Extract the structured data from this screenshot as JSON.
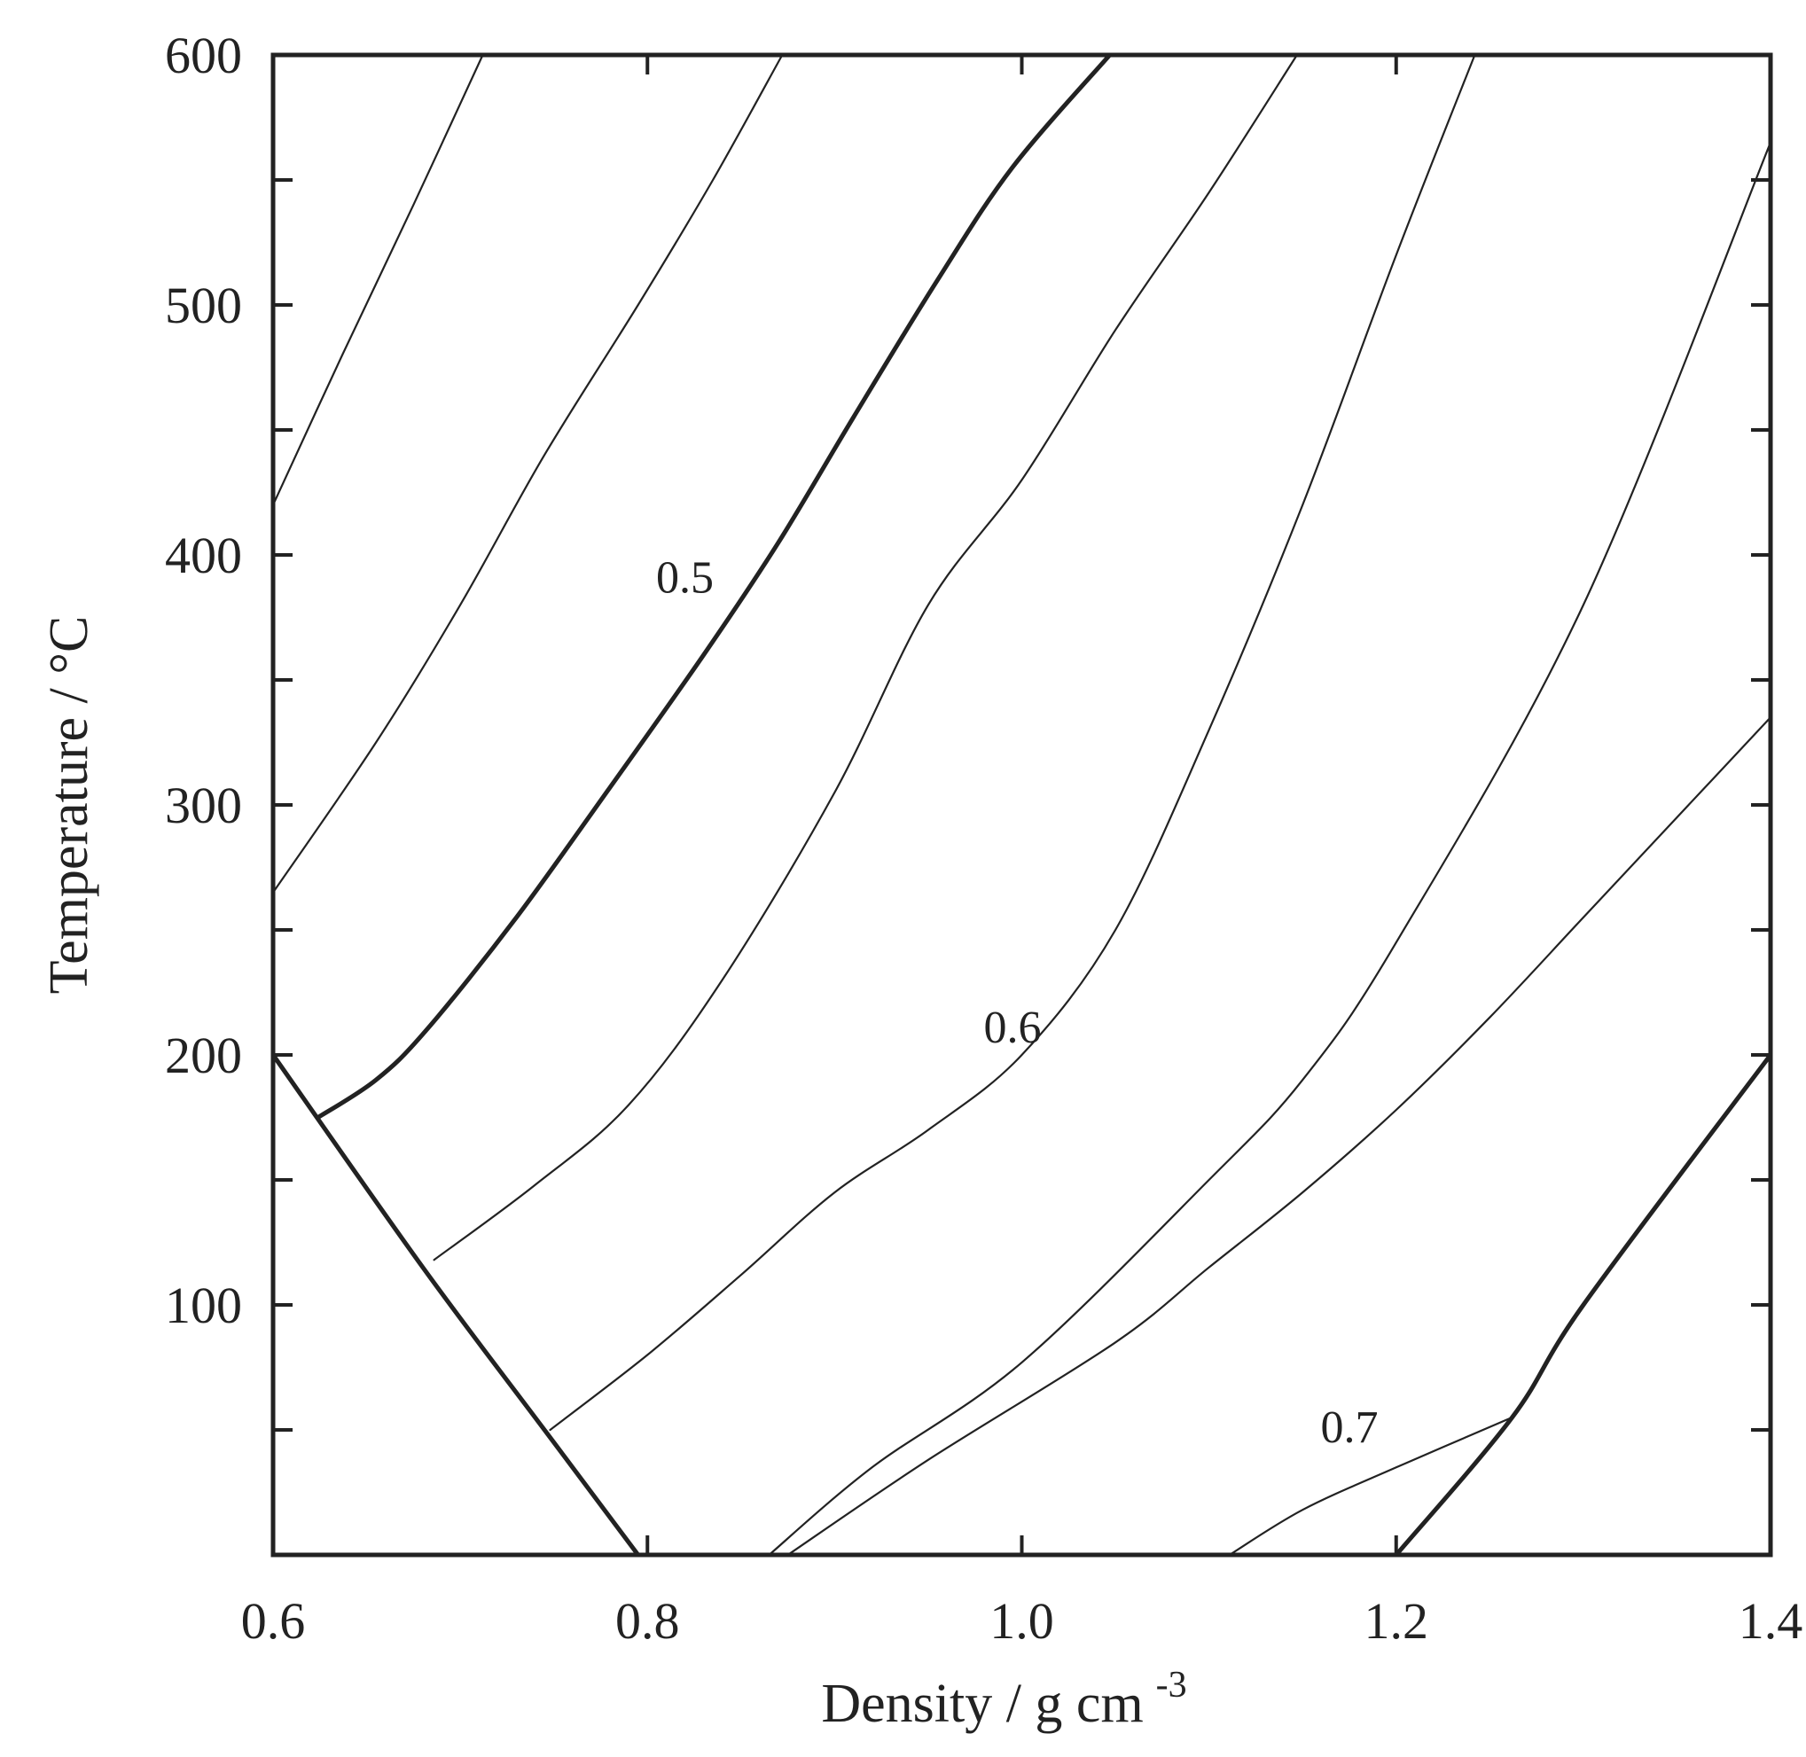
{
  "chart_data": {
    "type": "line",
    "title": "",
    "xlabel": "Density / g cm",
    "xlabel_superscript": "-3",
    "ylabel": "Temperature / °C",
    "xlim": [
      0.6,
      1.4
    ],
    "ylim": [
      0,
      600
    ],
    "x_ticks": [
      "0.6",
      "0.8",
      "1.0",
      "1.2",
      "1.4"
    ],
    "y_ticks": [
      "100",
      "200",
      "300",
      "400",
      "500",
      "600"
    ],
    "grid": false,
    "legend": "none",
    "series": [
      {
        "label": "",
        "bold": false,
        "points": [
          [
            0.6,
            420
          ],
          [
            0.637,
            480
          ],
          [
            0.675,
            540
          ],
          [
            0.712,
            600
          ]
        ]
      },
      {
        "label": "",
        "bold": false,
        "points": [
          [
            0.6,
            265
          ],
          [
            0.655,
            325
          ],
          [
            0.7,
            380
          ],
          [
            0.745,
            440
          ],
          [
            0.795,
            500
          ],
          [
            0.835,
            550
          ],
          [
            0.872,
            600
          ]
        ]
      },
      {
        "label": "0.5",
        "bold": true,
        "points": [
          [
            0.624,
            175
          ],
          [
            0.655,
            190
          ],
          [
            0.682,
            210
          ],
          [
            0.73,
            255
          ],
          [
            0.78,
            307
          ],
          [
            0.83,
            360
          ],
          [
            0.87,
            405
          ],
          [
            0.91,
            455
          ],
          [
            0.955,
            510
          ],
          [
            0.995,
            555
          ],
          [
            1.047,
            600
          ]
        ]
      },
      {
        "label": "",
        "bold": false,
        "points": [
          [
            0.686,
            118
          ],
          [
            0.74,
            148
          ],
          [
            0.79,
            180
          ],
          [
            0.84,
            230
          ],
          [
            0.9,
            305
          ],
          [
            0.95,
            380
          ],
          [
            1.0,
            430
          ],
          [
            1.05,
            490
          ],
          [
            1.1,
            545
          ],
          [
            1.147,
            600
          ]
        ]
      },
      {
        "label": "0.6",
        "bold": false,
        "points": [
          [
            0.748,
            50
          ],
          [
            0.8,
            80
          ],
          [
            0.85,
            112
          ],
          [
            0.9,
            145
          ],
          [
            0.95,
            170
          ],
          [
            1.0,
            200
          ],
          [
            1.05,
            250
          ],
          [
            1.1,
            330
          ],
          [
            1.15,
            420
          ],
          [
            1.2,
            520
          ],
          [
            1.242,
            600
          ]
        ]
      },
      {
        "label": "",
        "bold": false,
        "points": [
          [
            0.865,
            0
          ],
          [
            0.92,
            35
          ],
          [
            1.0,
            77
          ],
          [
            1.1,
            150
          ],
          [
            1.15,
            190
          ],
          [
            1.2,
            245
          ],
          [
            1.3,
            380
          ],
          [
            1.4,
            565
          ]
        ]
      },
      {
        "label": "",
        "bold": false,
        "points": [
          [
            0.875,
            0
          ],
          [
            0.95,
            38
          ],
          [
            1.05,
            85
          ],
          [
            1.1,
            115
          ],
          [
            1.15,
            145
          ],
          [
            1.2,
            178
          ],
          [
            1.25,
            215
          ],
          [
            1.3,
            255
          ],
          [
            1.35,
            295
          ],
          [
            1.4,
            335
          ]
        ]
      },
      {
        "label": "0.7",
        "bold": false,
        "points": [
          [
            1.111,
            0
          ],
          [
            1.15,
            18
          ],
          [
            1.2,
            35
          ],
          [
            1.262,
            55
          ]
        ]
      },
      {
        "label": "",
        "bold": true,
        "points": [
          [
            0.6,
            200
          ],
          [
            0.68,
            115
          ],
          [
            0.745,
            50
          ],
          [
            0.795,
            0
          ]
        ]
      },
      {
        "label": "",
        "bold": true,
        "points": [
          [
            1.2,
            0
          ],
          [
            1.262,
            55
          ],
          [
            1.3,
            100
          ],
          [
            1.4,
            200
          ]
        ]
      }
    ],
    "annotations": [
      {
        "text": "0.5",
        "x": 0.82,
        "y": 385
      },
      {
        "text": "0.6",
        "x": 0.995,
        "y": 205
      },
      {
        "text": "0.7",
        "x": 1.175,
        "y": 45
      }
    ]
  }
}
